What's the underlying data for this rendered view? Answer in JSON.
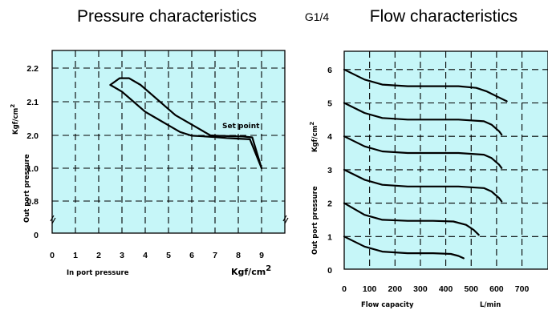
{
  "mid_label": "G1/4",
  "chart_data": [
    {
      "type": "line",
      "title": "Pressure characteristics",
      "xlabel": "In port pressure",
      "x_unit": "Kgf/cm",
      "x_unit_sup": "2",
      "ylabel": "Out port pressure",
      "y_unit": "Kgf/cm",
      "y_unit_sup": "2",
      "xticks": [
        "0",
        "1",
        "2",
        "3",
        "4",
        "5",
        "6",
        "7",
        "8",
        "9"
      ],
      "yticks": [
        "0",
        "0.8",
        "1.0",
        "2.0",
        "2.1",
        "2.2"
      ],
      "xlim": [
        0,
        10
      ],
      "y_axis_break": true,
      "grid": true,
      "annotation": "Set point",
      "series": [
        {
          "x": [
            2.5,
            3.0,
            3.5,
            4.0,
            4.5,
            5.0,
            5.5,
            6.0,
            6.5,
            7.0,
            7.5,
            8.0,
            8.5,
            9.0
          ],
          "y": [
            2.15,
            2.13,
            2.1,
            2.07,
            2.05,
            2.03,
            2.01,
            1.99,
            1.97,
            1.95,
            1.92,
            1.9,
            1.88,
            1.0
          ]
        },
        {
          "x": [
            2.5,
            2.9,
            3.3,
            3.8,
            4.3,
            4.8,
            5.3,
            5.8,
            6.3,
            6.8,
            7.2,
            7.7,
            8.2,
            8.6,
            9.0
          ],
          "y": [
            2.15,
            2.17,
            2.17,
            2.15,
            2.12,
            2.09,
            2.06,
            2.04,
            2.02,
            2.0,
            1.985,
            1.975,
            1.965,
            1.94,
            1.0
          ]
        }
      ]
    },
    {
      "type": "line",
      "title": "Flow characteristics",
      "xlabel": "Flow capacity",
      "x_unit": "L/min",
      "ylabel": "Out port pressure",
      "y_unit": "Kgf/cm",
      "y_unit_sup": "2",
      "xticks": [
        "0",
        "100",
        "200",
        "300",
        "400",
        "500",
        "600",
        "700"
      ],
      "yticks": [
        "0",
        "1",
        "2",
        "3",
        "4",
        "5",
        "6"
      ],
      "xlim": [
        0,
        800
      ],
      "ylim": [
        0,
        6.5
      ],
      "grid": true,
      "series": [
        {
          "x": [
            0,
            80,
            150,
            250,
            350,
            420,
            450,
            470
          ],
          "y": [
            1.0,
            0.7,
            0.55,
            0.5,
            0.5,
            0.48,
            0.42,
            0.35
          ]
        },
        {
          "x": [
            0,
            80,
            150,
            250,
            350,
            430,
            480,
            510,
            530
          ],
          "y": [
            2.0,
            1.65,
            1.5,
            1.47,
            1.47,
            1.45,
            1.35,
            1.2,
            1.05
          ]
        },
        {
          "x": [
            0,
            80,
            150,
            250,
            350,
            450,
            550,
            580,
            610,
            620
          ],
          "y": [
            3.0,
            2.7,
            2.55,
            2.5,
            2.5,
            2.5,
            2.45,
            2.35,
            2.15,
            2.05
          ]
        },
        {
          "x": [
            0,
            80,
            150,
            250,
            350,
            450,
            550,
            580,
            610,
            620
          ],
          "y": [
            4.0,
            3.7,
            3.55,
            3.5,
            3.5,
            3.5,
            3.45,
            3.35,
            3.15,
            3.05
          ]
        },
        {
          "x": [
            0,
            80,
            150,
            250,
            350,
            450,
            550,
            580,
            610,
            620
          ],
          "y": [
            5.0,
            4.7,
            4.55,
            4.5,
            4.5,
            4.5,
            4.45,
            4.35,
            4.15,
            4.05
          ]
        },
        {
          "x": [
            0,
            80,
            150,
            250,
            350,
            450,
            520,
            560,
            600,
            640
          ],
          "y": [
            6.0,
            5.7,
            5.55,
            5.5,
            5.5,
            5.5,
            5.45,
            5.35,
            5.2,
            5.05
          ]
        }
      ]
    }
  ]
}
